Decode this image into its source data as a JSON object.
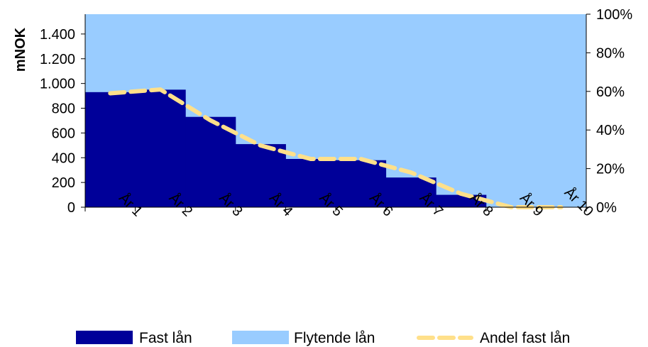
{
  "chart_data": {
    "type": "area",
    "categories": [
      "År 1",
      "År 2",
      "År 3",
      "År 4",
      "År 5",
      "År 6",
      "År 7",
      "År 8",
      "År 9",
      "År 10"
    ],
    "series": [
      {
        "name": "Fast lån",
        "kind": "bar",
        "axis": "left",
        "color": "#000099",
        "values": [
          930,
          950,
          730,
          510,
          390,
          380,
          240,
          100,
          0,
          0
        ]
      },
      {
        "name": "Flytende lån",
        "kind": "area-fill",
        "axis": "left",
        "color": "#99CCFF",
        "values": [
          620,
          630,
          830,
          1050,
          1170,
          1180,
          1320,
          1460,
          1560,
          1560
        ]
      },
      {
        "name": "Andel fast lån",
        "kind": "line-dashed",
        "axis": "right",
        "color": "#FFE08A",
        "values": [
          0.59,
          0.61,
          0.45,
          0.32,
          0.25,
          0.25,
          0.18,
          0.07,
          0.0,
          0.0
        ]
      }
    ],
    "ylabel": "mNOK",
    "ylim": [
      0,
      1560
    ],
    "yticks": [
      0,
      200,
      400,
      600,
      800,
      1000,
      1200,
      1400
    ],
    "ytick_labels": [
      "0",
      "200",
      "400",
      "600",
      "800",
      "1.000",
      "1.200",
      "1.400"
    ],
    "y2lim": [
      0,
      1
    ],
    "y2ticks": [
      0,
      0.2,
      0.4,
      0.6,
      0.8,
      1.0
    ],
    "y2tick_labels": [
      "0%",
      "20%",
      "40%",
      "60%",
      "80%",
      "100%"
    ],
    "grid": false,
    "legend": "bottom"
  }
}
